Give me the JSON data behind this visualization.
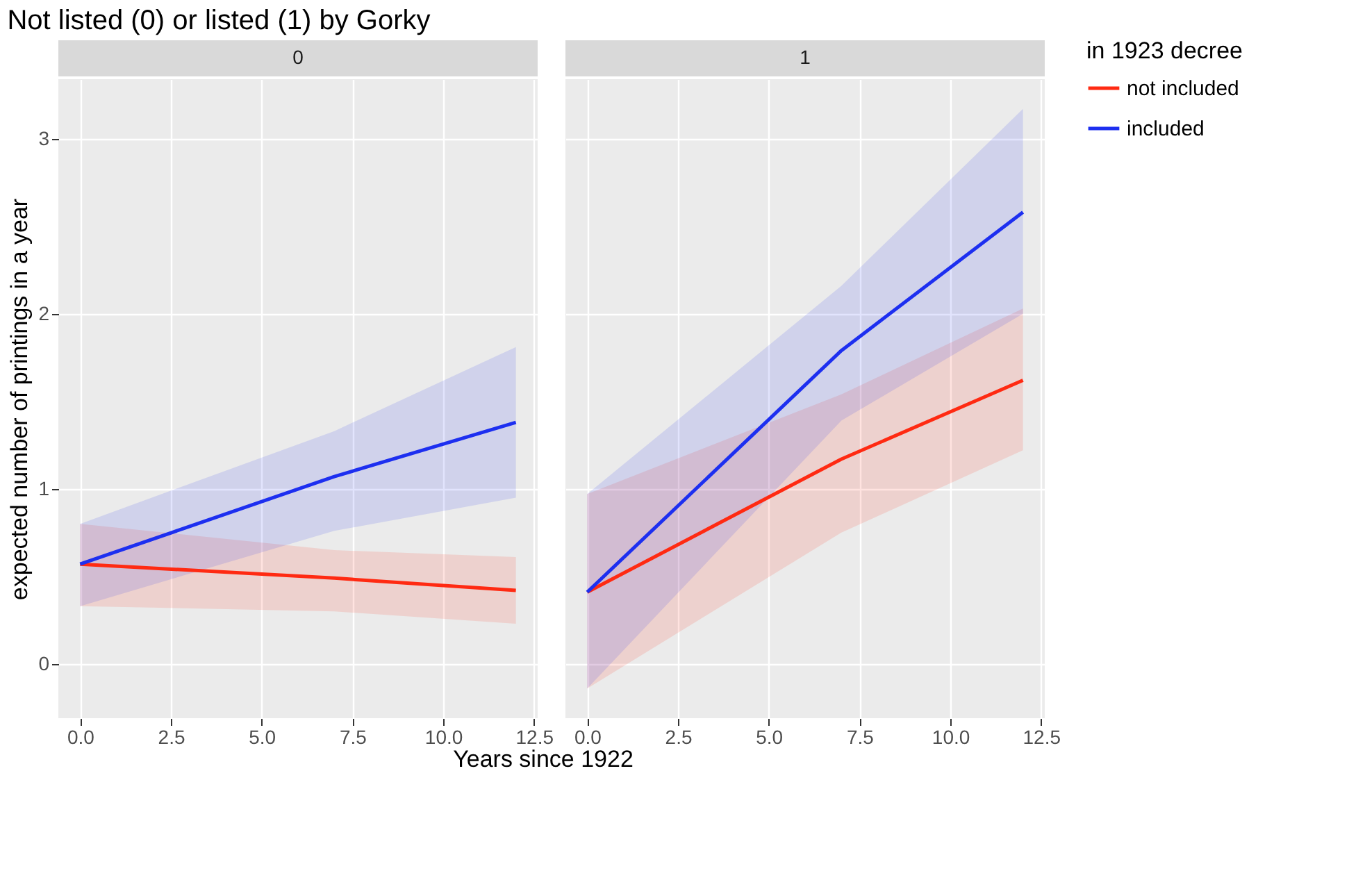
{
  "chart_data": [
    {
      "type": "line",
      "title": "Not listed (0) or listed (1) by Gorky",
      "subtitle": "0",
      "xlabel": "Years since 1922",
      "ylabel": "expected number of printings in a year",
      "x": [
        0,
        7,
        12
      ],
      "series": [
        {
          "name": "not included",
          "color": "#ff2a12",
          "values": [
            0.57,
            0.49,
            0.42
          ],
          "lower": [
            0.33,
            0.3,
            0.23
          ],
          "upper": [
            0.8,
            0.65,
            0.61
          ]
        },
        {
          "name": "included",
          "color": "#1d2ff0",
          "values": [
            0.57,
            1.07,
            1.38
          ],
          "lower": [
            0.33,
            0.76,
            0.95
          ],
          "upper": [
            0.8,
            1.33,
            1.81
          ]
        }
      ],
      "xlim": [
        -0.6,
        12.6
      ],
      "ylim": [
        -0.31,
        3.34
      ],
      "xticks": [
        {
          "value": 0,
          "label": "0.0"
        },
        2.5,
        {
          "value": 5,
          "label": "5.0"
        },
        7.5,
        {
          "value": 10,
          "label": "10.0"
        },
        12.5
      ],
      "yticks": [
        0,
        1,
        2,
        3
      ],
      "grid": true,
      "legend": "right"
    },
    {
      "type": "line",
      "subtitle": "1",
      "legend_title": "in 1923 decree",
      "x": [
        0,
        7,
        12
      ],
      "series": [
        {
          "name": "not included",
          "color": "#ff2a12",
          "values": [
            0.41,
            1.17,
            1.62
          ],
          "lower": [
            -0.14,
            0.75,
            1.22
          ],
          "upper": [
            0.97,
            1.54,
            2.03
          ]
        },
        {
          "name": "included",
          "color": "#1d2ff0",
          "values": [
            0.41,
            1.79,
            2.58
          ],
          "lower": [
            -0.14,
            1.39,
            2.0
          ],
          "upper": [
            0.97,
            2.16,
            3.17
          ]
        }
      ],
      "xlim": [
        -0.6,
        12.6
      ],
      "ylim": [
        -0.31,
        3.34
      ],
      "xticks": [
        {
          "value": 0,
          "label": "0.0"
        },
        2.5,
        {
          "value": 5,
          "label": "5.0"
        },
        7.5,
        {
          "value": 10,
          "label": "10.0"
        },
        12.5
      ],
      "yticks": [
        0,
        1,
        2,
        3
      ],
      "grid": true,
      "legend": "right",
      "tick_labels": "x"
    }
  ]
}
